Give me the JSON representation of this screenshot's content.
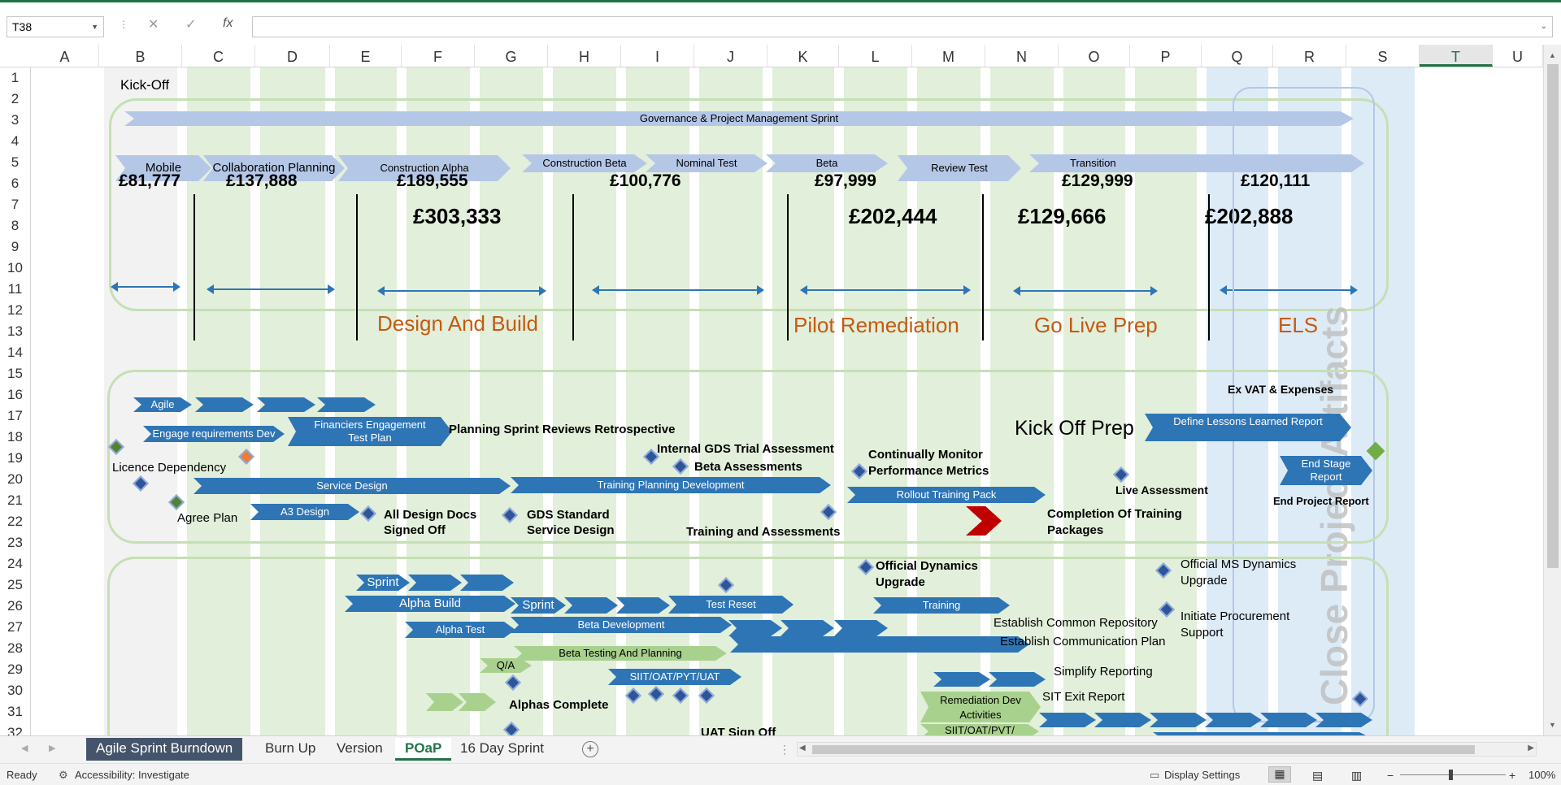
{
  "formula": {
    "namebox": "T38",
    "cancel_icon": "✕",
    "enter_icon": "✓",
    "fx": "fx"
  },
  "columns": [
    "A",
    "B",
    "C",
    "D",
    "E",
    "F",
    "G",
    "H",
    "I",
    "J",
    "K",
    "L",
    "M",
    "N",
    "O",
    "P",
    "Q",
    "R",
    "S",
    "T",
    "U"
  ],
  "selected_column": "T",
  "rows": [
    "1",
    "2",
    "3",
    "4",
    "5",
    "6",
    "7",
    "8",
    "9",
    "10",
    "11",
    "12",
    "13",
    "14",
    "15",
    "16",
    "17",
    "18",
    "19",
    "20",
    "21",
    "22",
    "23",
    "24",
    "25",
    "26",
    "27",
    "28",
    "29",
    "30",
    "31",
    "32"
  ],
  "sheet": {
    "kickoff": "Kick-Off",
    "governance": "Governance & Project Management Sprint",
    "phases": [
      "Mobile",
      "Collaboration Planning",
      "Construction Alpha",
      "Construction Beta",
      "Nominal Test",
      "Beta",
      "Review Test",
      "Transition"
    ],
    "amounts": [
      "£81,777",
      "£137,888",
      "£189,555",
      "£100,776",
      "£97,999",
      "£129,999",
      "£120,111"
    ],
    "totals": [
      "£303,333",
      "£202,444",
      "£129,666",
      "£202,888"
    ],
    "stages": [
      "Design And Build",
      "Pilot Remediation",
      "Go Live Prep",
      "ELS"
    ],
    "close_label": "Close Project Artifacts",
    "agile": "Agile",
    "engage": "Engage requirements Dev",
    "financiers": "Financiers Engagement Test Plan",
    "planning_sprint": "Planning Sprint Reviews Retrospective",
    "licence": "Licence Dependency",
    "service_design": "Service Design",
    "agree_plan": "Agree Plan",
    "a3_design": "A3 Design",
    "all_design_docs": "All Design Docs Signed Off",
    "gds_standard": "GDS Standard Service Design",
    "internal_gds": "Internal GDS Trial Assessment",
    "beta_assess": "Beta Assessments",
    "training_planning": "Training Planning Development",
    "training_assess": "Training and Assessments",
    "continually": "Continually Monitor Performance Metrics",
    "rollout": "Rollout Training Pack",
    "completion": "Completion Of Training Packages",
    "kickoff_prep": "Kick Off Prep",
    "define_lessons": "Define Lessons Learned Report",
    "ex_vat": "Ex VAT & Expenses",
    "live_assess": "Live Assessment",
    "end_stage": "End Stage Report",
    "end_project": "End Project Report",
    "sprint": "Sprint",
    "alpha_build": "Alpha Build",
    "test_reset": "Test Reset",
    "alpha_test": "Alpha Test",
    "beta_dev": "Beta Development",
    "beta_testing": "Beta Testing And Planning",
    "qa": "Q/A",
    "siit": "SIIT/OAT/PYT/UAT",
    "alphas_complete": "Alphas Complete",
    "uat_signoff": "UAT Sign Off",
    "official_dyn": "Official Dynamics Upgrade",
    "training": "Training",
    "establish_repo": "Establish Common Repository",
    "establish_comm": "Establish Communication Plan",
    "simplify": "Simplify Reporting",
    "remediation": "Remediation Dev Activities",
    "sit_exit": "SIT Exit Report",
    "siit2": "SIIT/OAT/PVT/",
    "official_ms": "Official MS Dynamics Upgrade",
    "initiate_proc": "Initiate Procurement Support"
  },
  "tabs": [
    "Agile Sprint Burndown",
    "Burn Up",
    "Version",
    "POaP",
    "16 Day Sprint"
  ],
  "active_tab": "POaP",
  "status": {
    "ready": "Ready",
    "accessibility": "Accessibility: Investigate",
    "display": "Display Settings",
    "zoom": "100%"
  },
  "colors": {
    "excel_green": "#217346",
    "light_blue_chevron": "#b4c7e7",
    "dark_blue_chevron": "#2e75b6",
    "green_chevron": "#a9d18e",
    "phase_orange": "#c55a11"
  }
}
